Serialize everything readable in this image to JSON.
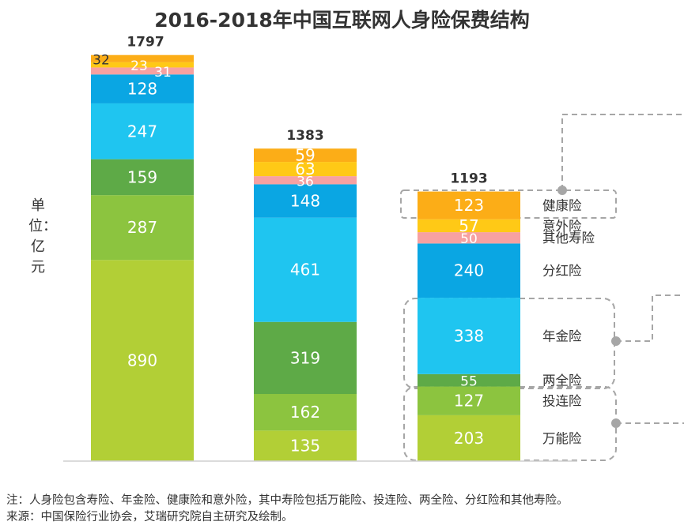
{
  "title": "2016-2018年中国互联网人身险保费结构",
  "unit": "单位：亿元",
  "notes": {
    "note": "注：人身险包含寿险、年金险、健康险和意外险，其中寿险包括万能险、投连险、两全险、分红险和其他寿险。",
    "source": "来源：中国保险行业协会，艾瑞研究院自主研究及绘制。"
  },
  "colors": {
    "万能险": "#b2cf36",
    "投连险": "#8cc43f",
    "两全险": "#5eaa47",
    "年金险": "#1fc5f0",
    "分红险": "#0aa6e3",
    "其他寿险": "#f7a1a1",
    "意外险": "#ffc916",
    "健康险": "#fcad17",
    "frame": "#a6a6a6"
  },
  "chart_data": {
    "type": "bar",
    "stacked": true,
    "title": "2016-2018年中国互联网人身险保费结构",
    "ylabel": "单位：亿元",
    "categories": [
      "",
      "",
      ""
    ],
    "totals": [
      "1797",
      "1383",
      "1193"
    ],
    "series": [
      {
        "name": "万能险",
        "values": [
          890,
          135,
          203
        ]
      },
      {
        "name": "投连险",
        "values": [
          287,
          162,
          127
        ]
      },
      {
        "name": "两全险",
        "values": [
          159,
          319,
          55
        ]
      },
      {
        "name": "年金险",
        "values": [
          247,
          461,
          338
        ]
      },
      {
        "name": "分红险",
        "values": [
          128,
          148,
          240
        ]
      },
      {
        "name": "其他寿险",
        "values": [
          31,
          36,
          50
        ]
      },
      {
        "name": "意外险",
        "values": [
          23,
          63,
          57
        ]
      },
      {
        "name": "健康险",
        "values": [
          32,
          59,
          123
        ]
      }
    ],
    "legend_labels": [
      {
        "key": "健康险",
        "text": "健康险"
      },
      {
        "key": "意外险",
        "text": "意外险"
      },
      {
        "key": "其他寿险",
        "text": "其他寿险"
      },
      {
        "key": "分红险",
        "text": "分红险"
      },
      {
        "key": "年金险",
        "text": "年金险"
      },
      {
        "key": "两全险",
        "text": "两全险"
      },
      {
        "key": "投连险",
        "text": "投连险"
      },
      {
        "key": "万能险",
        "text": "万能险"
      }
    ],
    "legend_placement": "right of last bar",
    "grid": false
  }
}
